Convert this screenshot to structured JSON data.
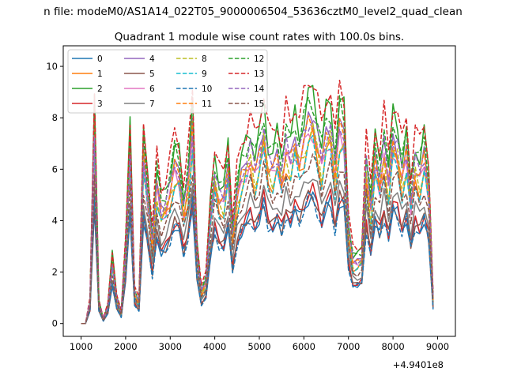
{
  "chart_data": {
    "type": "line",
    "supertitle": "n file: modeM0/AS1A14_022T05_9000006504_53636cztM0_level2_quad_clean",
    "title": "Quadrant 1 module wise count rates with 100.0s bins.",
    "xlabel": "",
    "ylabel": "",
    "x_offset_label": "+4.9401e8",
    "xlim": [
      600,
      9400
    ],
    "ylim": [
      -0.5,
      10.8
    ],
    "xticks": [
      1000,
      2000,
      3000,
      4000,
      5000,
      6000,
      7000,
      8000,
      9000
    ],
    "yticks": [
      0,
      2,
      4,
      6,
      8,
      10
    ],
    "legend_position": "upper-left",
    "x": [
      1000,
      1100,
      1200,
      1300,
      1400,
      1500,
      1600,
      1700,
      1800,
      1900,
      2000,
      2100,
      2200,
      2300,
      2400,
      2500,
      2600,
      2700,
      2800,
      2900,
      3000,
      3100,
      3200,
      3300,
      3400,
      3500,
      3600,
      3700,
      3800,
      3900,
      4000,
      4100,
      4200,
      4300,
      4400,
      4500,
      4600,
      4700,
      4800,
      4900,
      5000,
      5100,
      5200,
      5300,
      5400,
      5500,
      5600,
      5700,
      5800,
      5900,
      6000,
      6100,
      6200,
      6300,
      6400,
      6500,
      6600,
      6700,
      6800,
      6900,
      7000,
      7100,
      7200,
      7300,
      7400,
      7500,
      7600,
      7700,
      7800,
      7900,
      8000,
      8100,
      8200,
      8300,
      8400,
      8500,
      8600,
      8700,
      8800,
      8900
    ],
    "shape": [
      0,
      0,
      0.1,
      0.95,
      0.1,
      0.02,
      0.08,
      0.3,
      0.12,
      0.05,
      0.35,
      0.85,
      0.15,
      0.1,
      0.82,
      0.62,
      0.38,
      0.68,
      0.55,
      0.58,
      0.66,
      0.77,
      0.74,
      0.55,
      0.68,
      0.95,
      0.35,
      0.15,
      0.2,
      0.52,
      0.72,
      0.62,
      0.6,
      0.76,
      0.42,
      0.62,
      0.72,
      0.78,
      0.84,
      0.74,
      0.82,
      0.95,
      0.78,
      0.75,
      0.82,
      0.72,
      0.86,
      0.8,
      0.9,
      0.82,
      0.9,
      0.98,
      1.0,
      0.9,
      0.78,
      0.92,
      0.95,
      0.74,
      0.96,
      0.93,
      0.45,
      0.3,
      0.3,
      0.32,
      0.76,
      0.55,
      0.8,
      0.7,
      0.85,
      0.68,
      0.9,
      0.86,
      0.72,
      0.83,
      0.6,
      0.78,
      0.72,
      0.82,
      0.66,
      0.12
    ],
    "series": [
      {
        "name": "0",
        "color": "#1f77b4",
        "dash": false,
        "scale": 5.3,
        "phase": 0.0
      },
      {
        "name": "1",
        "color": "#ff7f0e",
        "dash": false,
        "scale": 7.6,
        "phase": 1.3
      },
      {
        "name": "2",
        "color": "#2ca02c",
        "dash": false,
        "scale": 9.5,
        "phase": 2.1
      },
      {
        "name": "3",
        "color": "#d62728",
        "dash": false,
        "scale": 5.5,
        "phase": 0.7
      },
      {
        "name": "4",
        "color": "#9467bd",
        "dash": false,
        "scale": 8.4,
        "phase": 2.9
      },
      {
        "name": "5",
        "color": "#8c564b",
        "dash": false,
        "scale": 5.4,
        "phase": 3.7
      },
      {
        "name": "6",
        "color": "#e377c2",
        "dash": false,
        "scale": 8.0,
        "phase": 4.4
      },
      {
        "name": "7",
        "color": "#7f7f7f",
        "dash": false,
        "scale": 6.2,
        "phase": 5.2
      },
      {
        "name": "8",
        "color": "#bcbd22",
        "dash": true,
        "scale": 7.9,
        "phase": 0.4
      },
      {
        "name": "9",
        "color": "#17becf",
        "dash": true,
        "scale": 7.4,
        "phase": 1.8
      },
      {
        "name": "10",
        "color": "#1f77b4",
        "dash": true,
        "scale": 5.2,
        "phase": 2.6
      },
      {
        "name": "11",
        "color": "#ff7f0e",
        "dash": true,
        "scale": 8.3,
        "phase": 3.3
      },
      {
        "name": "12",
        "color": "#2ca02c",
        "dash": true,
        "scale": 9.3,
        "phase": 4.0
      },
      {
        "name": "13",
        "color": "#d62728",
        "dash": true,
        "scale": 10.3,
        "phase": 4.8
      },
      {
        "name": "14",
        "color": "#9467bd",
        "dash": true,
        "scale": 8.6,
        "phase": 5.5
      },
      {
        "name": "15",
        "color": "#8c564b",
        "dash": true,
        "scale": 6.9,
        "phase": 6.1
      }
    ]
  }
}
